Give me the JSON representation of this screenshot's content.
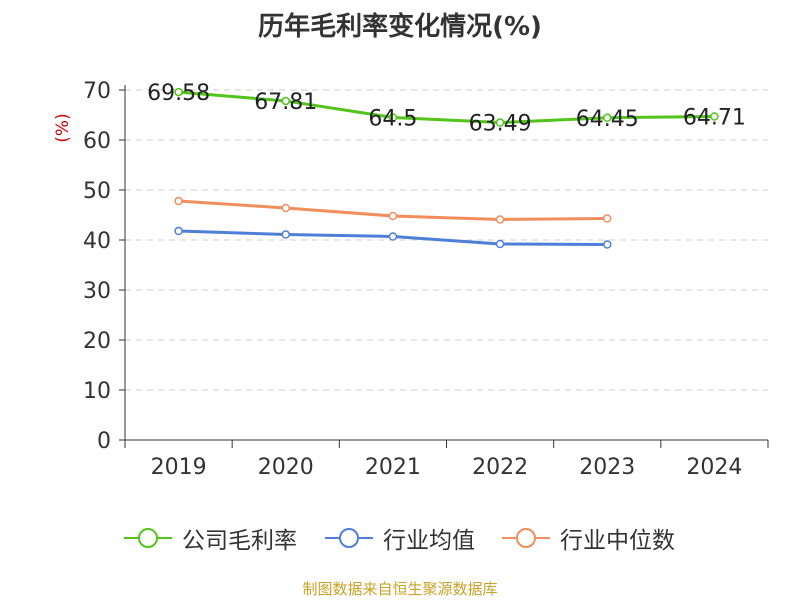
{
  "title": "历年毛利率变化情况(%)",
  "source": "制图数据来自恒生聚源数据库",
  "chart_data": {
    "type": "line",
    "title": "历年毛利率变化情况(%)",
    "ylabel": "(%)",
    "ylim": [
      0,
      70
    ],
    "yticks": [
      0,
      10,
      20,
      30,
      40,
      50,
      60,
      70
    ],
    "grid": true,
    "legend_position": "bottom",
    "categories": [
      "2019",
      "2020",
      "2021",
      "2022",
      "2023",
      "2024"
    ],
    "series": [
      {
        "name": "公司毛利率",
        "color": "#52c41a",
        "values": [
          69.58,
          67.81,
          64.5,
          63.49,
          64.45,
          64.71
        ],
        "labels": [
          "69.58",
          "67.81",
          "64.5",
          "63.49",
          "64.45",
          "64.71"
        ]
      },
      {
        "name": "行业均值",
        "color": "#4e7fd8",
        "values": [
          41.8,
          41.1,
          40.7,
          39.2,
          39.1,
          null
        ]
      },
      {
        "name": "行业中位数",
        "color": "#f28e5c",
        "values": [
          47.8,
          46.4,
          44.8,
          44.1,
          44.3,
          null
        ]
      }
    ]
  }
}
